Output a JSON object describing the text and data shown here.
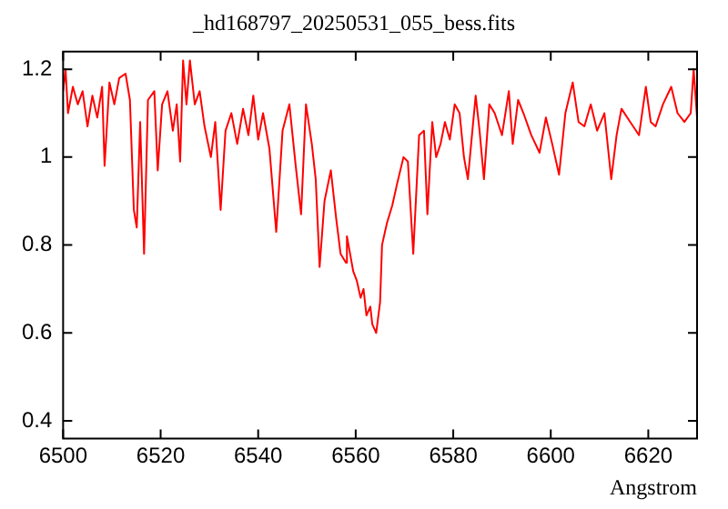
{
  "chart_data": {
    "type": "line",
    "title": "_hd168797_20250531_055_bess.fits",
    "xlabel": "Angstrom",
    "x": [
      6500,
      6500.5,
      6501,
      6502,
      6503,
      6504,
      6505,
      6506,
      6507,
      6508,
      6508.5,
      6509.5,
      6510.5,
      6511.5,
      6512.8,
      6513.7,
      6514.5,
      6515.1,
      6515.8,
      6516.6,
      6517.4,
      6518.7,
      6519.4,
      6520.3,
      6521.4,
      6522.5,
      6523.3,
      6524,
      6524.6,
      6525.3,
      6526,
      6527,
      6528,
      6529,
      6530.3,
      6531.2,
      6532.3,
      6533.3,
      6534.5,
      6535.7,
      6536.9,
      6538,
      6539,
      6540,
      6541,
      6542.3,
      6543.7,
      6545,
      6546.4,
      6547.7,
      6548.8,
      6549.8,
      6551,
      6551.8,
      6552.6,
      6553.6,
      6554.9,
      6556,
      6556.9,
      6558,
      6558.2,
      6559.5,
      6560.2,
      6561,
      6561.6,
      6562.2,
      6563,
      6563.4,
      6564.2,
      6565,
      6565.4,
      6566.4,
      6567.5,
      6568.5,
      6569.8,
      6570.7,
      6571.8,
      6573,
      6574,
      6574.7,
      6575.7,
      6576.5,
      6577.4,
      6578.3,
      6579.3,
      6580.3,
      6581.3,
      6582.2,
      6583,
      6584.6,
      6585.4,
      6586.3,
      6587.4,
      6588.5,
      6590,
      6591.4,
      6592.2,
      6593.3,
      6594.4,
      6596,
      6597.7,
      6599,
      6600.3,
      6601.7,
      6603,
      6604.5,
      6605.7,
      6606.9,
      6608.2,
      6609.5,
      6611,
      6612.4,
      6613.5,
      6614.5,
      6616.3,
      6618.1,
      6619.5,
      6620.5,
      6621.5,
      6623,
      6624.7,
      6626,
      6627.4,
      6628.7,
      6629.3,
      6630
    ],
    "series": [
      {
        "color": "#ff0000",
        "values": [
          1.15,
          1.2,
          1.1,
          1.16,
          1.12,
          1.15,
          1.07,
          1.14,
          1.09,
          1.16,
          0.98,
          1.17,
          1.12,
          1.18,
          1.19,
          1.13,
          0.88,
          0.84,
          1.08,
          0.78,
          1.13,
          1.15,
          0.97,
          1.12,
          1.15,
          1.06,
          1.12,
          0.99,
          1.22,
          1.12,
          1.22,
          1.12,
          1.15,
          1.07,
          1,
          1.08,
          0.88,
          1.06,
          1.1,
          1.03,
          1.11,
          1.05,
          1.14,
          1.04,
          1.1,
          1.02,
          0.83,
          1.06,
          1.12,
          0.98,
          0.87,
          1.12,
          1.03,
          0.95,
          0.75,
          0.9,
          0.97,
          0.86,
          0.78,
          0.76,
          0.82,
          0.74,
          0.72,
          0.68,
          0.7,
          0.64,
          0.66,
          0.62,
          0.6,
          0.67,
          0.8,
          0.85,
          0.89,
          0.94,
          1,
          0.99,
          0.78,
          1.05,
          1.06,
          0.87,
          1.08,
          1,
          1.03,
          1.08,
          1.04,
          1.12,
          1.1,
          1,
          0.95,
          1.14,
          1.06,
          0.95,
          1.12,
          1.1,
          1.05,
          1.15,
          1.03,
          1.13,
          1.1,
          1.05,
          1.01,
          1.09,
          1.03,
          0.96,
          1.1,
          1.17,
          1.08,
          1.07,
          1.12,
          1.06,
          1.1,
          0.95,
          1.05,
          1.11,
          1.08,
          1.05,
          1.16,
          1.08,
          1.07,
          1.12,
          1.16,
          1.1,
          1.08,
          1.1,
          1.2,
          1.09
        ]
      }
    ],
    "xlim": [
      6500,
      6630
    ],
    "xticks": [
      6500,
      6520,
      6540,
      6560,
      6580,
      6600,
      6620
    ],
    "ylim": [
      0.36,
      1.24
    ],
    "yticks": [
      0.4,
      0.6,
      0.8,
      1,
      1.2
    ],
    "grid": false,
    "legend": false,
    "marker": "none",
    "line_style": "solid"
  }
}
